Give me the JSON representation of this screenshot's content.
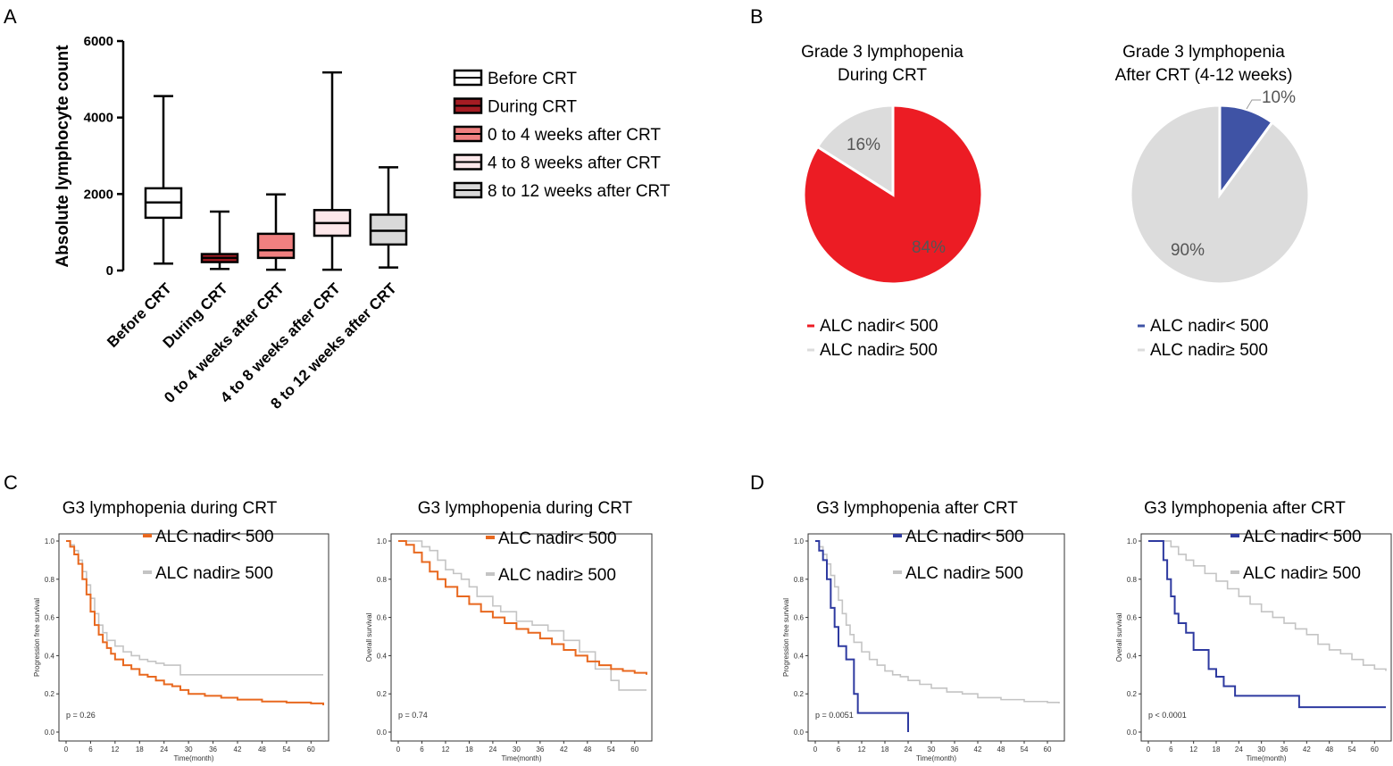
{
  "panel_letters": {
    "a": "A",
    "b": "B",
    "c": "C",
    "d": "D"
  },
  "colors": {
    "pie_red": "#ec1c24",
    "pie_gray": "#dcdcdc",
    "km_orange": "#e8681f",
    "km_blue": "#2e3aa0",
    "km_gray": "#c4c4c4",
    "pie_blue": "#3f53a5",
    "during_box": "#a51c23",
    "w0_4_box": "#f08080",
    "w4_8_box": "#fde8ea",
    "w8_12_box": "#d9d9d9"
  },
  "chart_data": [
    {
      "id": "A",
      "type": "box",
      "ylabel": "Absolute lymphocyte count",
      "ylim": [
        0,
        6000
      ],
      "yticks": [
        {
          "v": 0,
          "label": "0"
        },
        {
          "v": 2000,
          "label": "2000"
        },
        {
          "v": 4000,
          "label": "4000"
        },
        {
          "v": 6000,
          "label": "6000"
        }
      ],
      "categories": [
        "Before CRT",
        "During CRT",
        "0 to 4 weeks after CRT",
        "4 to 8 weeks after CRT",
        "8 to 12 weeks after CRT"
      ],
      "boxes": [
        {
          "min": 180,
          "q1": 1380,
          "median": 1780,
          "q3": 2150,
          "max": 4560,
          "color": "#ffffff"
        },
        {
          "min": 40,
          "q1": 220,
          "median": 330,
          "q3": 430,
          "max": 1540,
          "color": "#a51c23"
        },
        {
          "min": 20,
          "q1": 330,
          "median": 530,
          "q3": 960,
          "max": 1990,
          "color": "#f08080"
        },
        {
          "min": 20,
          "q1": 910,
          "median": 1240,
          "q3": 1580,
          "max": 5180,
          "color": "#fde8ea"
        },
        {
          "min": 80,
          "q1": 680,
          "median": 1040,
          "q3": 1460,
          "max": 2700,
          "color": "#d9d9d9"
        }
      ],
      "legend": [
        "Before CRT",
        "During CRT",
        "0 to 4 weeks after CRT",
        "4 to 8 weeks after CRT",
        "8 to 12 weeks after CRT"
      ]
    },
    {
      "id": "B1",
      "type": "pie",
      "title": [
        "Grade 3 lymphopenia",
        "During CRT"
      ],
      "slices": [
        {
          "label": "84%",
          "value": 84,
          "color": "#ec1c24"
        },
        {
          "label": "16%",
          "value": 16,
          "color": "#dcdcdc"
        }
      ],
      "legend": [
        "ALC nadir< 500",
        "ALC nadir≥ 500"
      ]
    },
    {
      "id": "B2",
      "type": "pie",
      "title": [
        "Grade 3 lymphopenia",
        "After CRT (4-12 weeks)"
      ],
      "slices": [
        {
          "label": "10%",
          "value": 10,
          "color": "#3f53a5"
        },
        {
          "label": "90%",
          "value": 90,
          "color": "#dcdcdc"
        }
      ],
      "legend": [
        "ALC nadir< 500",
        "ALC nadir≥ 500"
      ]
    },
    {
      "id": "C1",
      "type": "line",
      "title": "G3 lymphopenia during CRT",
      "ylabel": "Progression free survival",
      "xlabel": "Time(month)",
      "pvalue": "p = 0.26",
      "xticks": [
        0,
        6,
        12,
        18,
        24,
        30,
        36,
        42,
        48,
        54,
        60
      ],
      "yticks": [
        "0.0",
        "0.2",
        "0.4",
        "0.6",
        "0.8",
        "1.0"
      ],
      "xlim": [
        0,
        63
      ],
      "ylim": [
        0,
        1
      ],
      "series": [
        {
          "name": "ALC nadir< 500",
          "color": "#e8681f",
          "x": [
            0,
            1,
            2,
            3,
            4,
            5,
            6,
            7,
            8,
            9,
            10,
            11,
            12,
            14,
            16,
            18,
            20,
            22,
            24,
            26,
            28,
            30,
            34,
            38,
            42,
            48,
            54,
            60,
            63
          ],
          "y": [
            1.0,
            0.97,
            0.93,
            0.88,
            0.8,
            0.72,
            0.63,
            0.56,
            0.51,
            0.47,
            0.44,
            0.41,
            0.38,
            0.35,
            0.33,
            0.3,
            0.29,
            0.27,
            0.25,
            0.24,
            0.22,
            0.2,
            0.19,
            0.18,
            0.17,
            0.16,
            0.155,
            0.15,
            0.14
          ]
        },
        {
          "name": "ALC nadir≥ 500",
          "color": "#c4c4c4",
          "x": [
            0,
            1,
            2,
            3,
            4,
            5,
            6,
            7,
            8,
            9,
            10,
            12,
            14,
            16,
            18,
            20,
            22,
            24,
            26,
            28,
            63
          ],
          "y": [
            1.0,
            0.98,
            0.95,
            0.9,
            0.84,
            0.77,
            0.7,
            0.62,
            0.56,
            0.52,
            0.48,
            0.45,
            0.42,
            0.4,
            0.38,
            0.37,
            0.36,
            0.35,
            0.35,
            0.3,
            0.3
          ]
        }
      ]
    },
    {
      "id": "C2",
      "type": "line",
      "title": "G3 lymphopenia during CRT",
      "ylabel": "Overall survival",
      "xlabel": "Time(month)",
      "pvalue": "p = 0.74",
      "xticks": [
        0,
        6,
        12,
        18,
        24,
        30,
        36,
        42,
        48,
        54,
        60
      ],
      "yticks": [
        "0.0",
        "0.2",
        "0.4",
        "0.6",
        "0.8",
        "1.0"
      ],
      "xlim": [
        0,
        63
      ],
      "ylim": [
        0,
        1
      ],
      "series": [
        {
          "name": "ALC nadir< 500",
          "color": "#e8681f",
          "x": [
            0,
            2,
            4,
            6,
            8,
            10,
            12,
            15,
            18,
            21,
            24,
            27,
            30,
            33,
            36,
            39,
            42,
            45,
            48,
            51,
            54,
            57,
            60,
            63
          ],
          "y": [
            1.0,
            0.98,
            0.94,
            0.89,
            0.84,
            0.8,
            0.76,
            0.71,
            0.67,
            0.63,
            0.6,
            0.57,
            0.54,
            0.52,
            0.49,
            0.46,
            0.43,
            0.4,
            0.37,
            0.35,
            0.33,
            0.32,
            0.31,
            0.3
          ]
        },
        {
          "name": "ALC nadir≥ 500",
          "color": "#c4c4c4",
          "x": [
            0,
            4,
            6,
            8,
            10,
            12,
            14,
            16,
            18,
            20,
            22,
            24,
            26,
            30,
            34,
            38,
            42,
            46,
            50,
            54,
            56,
            63
          ],
          "y": [
            1.0,
            1.0,
            0.97,
            0.95,
            0.9,
            0.85,
            0.83,
            0.8,
            0.76,
            0.71,
            0.71,
            0.66,
            0.63,
            0.58,
            0.56,
            0.53,
            0.48,
            0.42,
            0.33,
            0.27,
            0.22,
            0.22
          ]
        }
      ]
    },
    {
      "id": "D1",
      "type": "line",
      "title": "G3 lymphopenia after CRT",
      "ylabel": "Progression free survival",
      "xlabel": "Time(month)",
      "pvalue": "p = 0.0051",
      "xticks": [
        0,
        6,
        12,
        18,
        24,
        30,
        36,
        42,
        48,
        54,
        60
      ],
      "yticks": [
        "0.0",
        "0.2",
        "0.4",
        "0.6",
        "0.8",
        "1.0"
      ],
      "xlim": [
        0,
        63
      ],
      "ylim": [
        0,
        1
      ],
      "series": [
        {
          "name": "ALC nadir< 500",
          "color": "#2e3aa0",
          "x": [
            0,
            1,
            2,
            3,
            4,
            5,
            6,
            8,
            10,
            11,
            12,
            24,
            24
          ],
          "y": [
            1.0,
            0.95,
            0.9,
            0.8,
            0.65,
            0.55,
            0.45,
            0.38,
            0.2,
            0.1,
            0.1,
            0.1,
            0.0
          ]
        },
        {
          "name": "ALC nadir≥ 500",
          "color": "#c4c4c4",
          "x": [
            0,
            1,
            2,
            3,
            4,
            5,
            6,
            7,
            8,
            9,
            10,
            12,
            14,
            16,
            18,
            20,
            22,
            24,
            27,
            30,
            34,
            38,
            42,
            48,
            54,
            60,
            63
          ],
          "y": [
            1.0,
            0.97,
            0.93,
            0.88,
            0.82,
            0.76,
            0.69,
            0.62,
            0.56,
            0.51,
            0.47,
            0.42,
            0.38,
            0.35,
            0.32,
            0.3,
            0.29,
            0.27,
            0.25,
            0.23,
            0.21,
            0.2,
            0.18,
            0.17,
            0.16,
            0.155,
            0.15
          ]
        }
      ]
    },
    {
      "id": "D2",
      "type": "line",
      "title": "G3 lymphopenia after CRT",
      "ylabel": "Overall survival",
      "xlabel": "Time(month)",
      "pvalue": "p < 0.0001",
      "xticks": [
        0,
        6,
        12,
        18,
        24,
        30,
        36,
        42,
        48,
        54,
        60
      ],
      "yticks": [
        "0.0",
        "0.2",
        "0.4",
        "0.6",
        "0.8",
        "1.0"
      ],
      "xlim": [
        0,
        63
      ],
      "ylim": [
        0,
        1
      ],
      "series": [
        {
          "name": "ALC nadir< 500",
          "color": "#2e3aa0",
          "x": [
            0,
            3,
            4,
            5,
            6,
            7,
            8,
            10,
            12,
            14,
            16,
            18,
            20,
            23,
            40,
            40,
            63
          ],
          "y": [
            1.0,
            1.0,
            0.9,
            0.8,
            0.71,
            0.62,
            0.57,
            0.52,
            0.43,
            0.43,
            0.33,
            0.29,
            0.24,
            0.19,
            0.19,
            0.13,
            0.13
          ]
        },
        {
          "name": "ALC nadir≥ 500",
          "color": "#c4c4c4",
          "x": [
            0,
            4,
            6,
            8,
            10,
            12,
            15,
            18,
            21,
            24,
            27,
            30,
            33,
            36,
            39,
            42,
            45,
            48,
            51,
            54,
            57,
            60,
            63
          ],
          "y": [
            1.0,
            1.0,
            0.97,
            0.93,
            0.9,
            0.87,
            0.83,
            0.79,
            0.75,
            0.71,
            0.67,
            0.63,
            0.6,
            0.57,
            0.54,
            0.51,
            0.46,
            0.43,
            0.41,
            0.38,
            0.35,
            0.33,
            0.32
          ]
        }
      ]
    }
  ]
}
